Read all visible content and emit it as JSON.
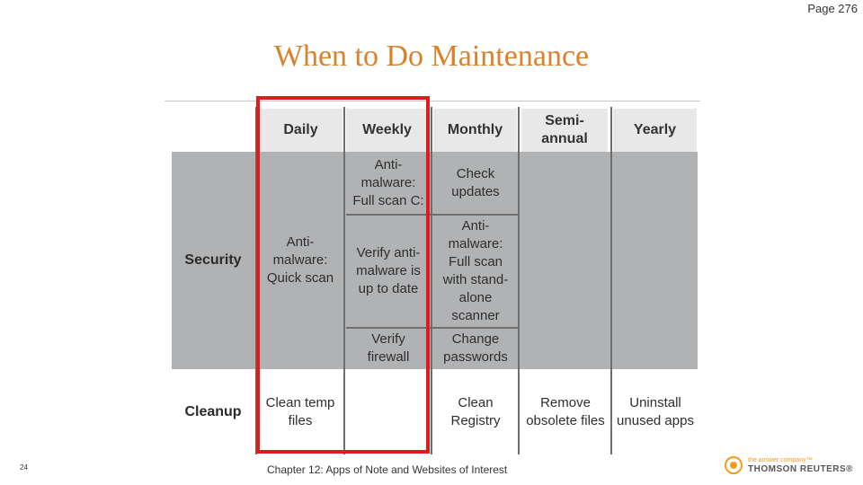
{
  "page_number": "Page 276",
  "title": "When to Do Maintenance",
  "table": {
    "headers": {
      "daily": "Daily",
      "weekly": "Weekly",
      "monthly": "Monthly",
      "semiannual_1": "Semi-",
      "semiannual_2": "annual",
      "yearly": "Yearly"
    },
    "row_labels": {
      "security": "Security",
      "cleanup": "Cleanup"
    },
    "security": {
      "daily": [
        "Anti-",
        "malware:",
        "Quick scan"
      ],
      "weekly_1": [
        "Anti-",
        "malware:",
        "Full scan C:"
      ],
      "weekly_2": [
        "Verify anti-",
        "malware is",
        "up to date"
      ],
      "weekly_3": [
        "Verify",
        "firewall"
      ],
      "monthly_1": [
        "Check",
        "updates"
      ],
      "monthly_2": [
        "Anti-",
        "malware:",
        "Full scan",
        "with stand-",
        "alone",
        "scanner"
      ],
      "monthly_3": [
        "Change",
        "passwords"
      ]
    },
    "cleanup": {
      "daily": [
        "Clean temp",
        "files"
      ],
      "monthly": [
        "Clean",
        "Registry"
      ],
      "semiannual": [
        "Remove",
        "obsolete files"
      ],
      "yearly": [
        "Uninstall",
        "unused apps"
      ]
    }
  },
  "footer": {
    "slide_number": "24",
    "chapter": "Chapter 12: Apps of Note and Websites of Interest",
    "logo_tagline": "the answer company™",
    "logo_name": "THOMSON REUTERS®"
  },
  "colors": {
    "title": "#d9822b",
    "highlight": "#e3191b",
    "band": "#b1b2b4",
    "logo": "#f29c1f"
  }
}
